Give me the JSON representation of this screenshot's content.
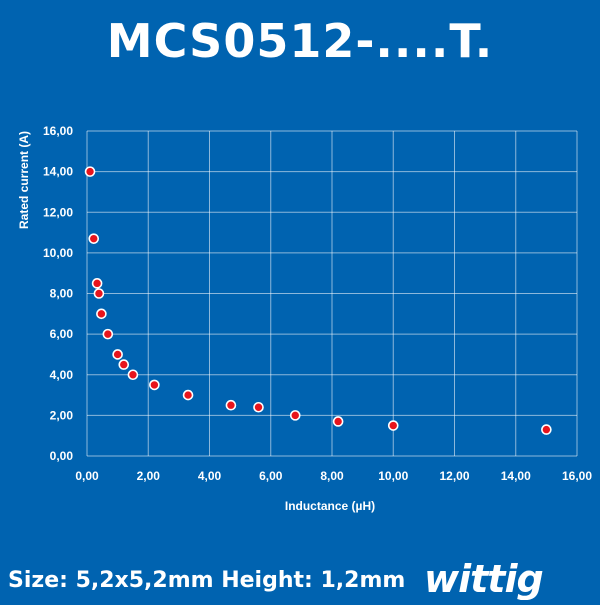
{
  "title": "MCS0512-....T.",
  "footer": {
    "size_text": "Size: 5,2x5,2mm Height: 1,2mm",
    "brand": "wittig"
  },
  "colors": {
    "background": "#0063b0",
    "point_fill": "#e8141c",
    "point_stroke": "#ffffff",
    "text": "#ffffff"
  },
  "chart_data": {
    "type": "scatter",
    "title": "MCS0512-....T.",
    "xlabel": "Inductance (µH)",
    "ylabel": "Rated current (A)",
    "xlim": [
      0,
      16
    ],
    "ylim": [
      0,
      16
    ],
    "x_ticks": [
      "0,00",
      "2,00",
      "4,00",
      "6,00",
      "8,00",
      "10,00",
      "12,00",
      "14,00",
      "16,00"
    ],
    "y_ticks": [
      "0,00",
      "2,00",
      "4,00",
      "6,00",
      "8,00",
      "10,00",
      "12,00",
      "14,00",
      "16,00"
    ],
    "grid": true,
    "points": [
      {
        "x": 0.1,
        "y": 14.0
      },
      {
        "x": 0.22,
        "y": 10.7
      },
      {
        "x": 0.33,
        "y": 8.5
      },
      {
        "x": 0.39,
        "y": 8.0
      },
      {
        "x": 0.47,
        "y": 7.0
      },
      {
        "x": 0.68,
        "y": 6.0
      },
      {
        "x": 1.0,
        "y": 5.0
      },
      {
        "x": 1.2,
        "y": 4.5
      },
      {
        "x": 1.5,
        "y": 4.0
      },
      {
        "x": 2.2,
        "y": 3.5
      },
      {
        "x": 3.3,
        "y": 3.0
      },
      {
        "x": 4.7,
        "y": 2.5
      },
      {
        "x": 5.6,
        "y": 2.4
      },
      {
        "x": 6.8,
        "y": 2.0
      },
      {
        "x": 8.2,
        "y": 1.7
      },
      {
        "x": 10.0,
        "y": 1.5
      },
      {
        "x": 15.0,
        "y": 1.3
      }
    ]
  }
}
